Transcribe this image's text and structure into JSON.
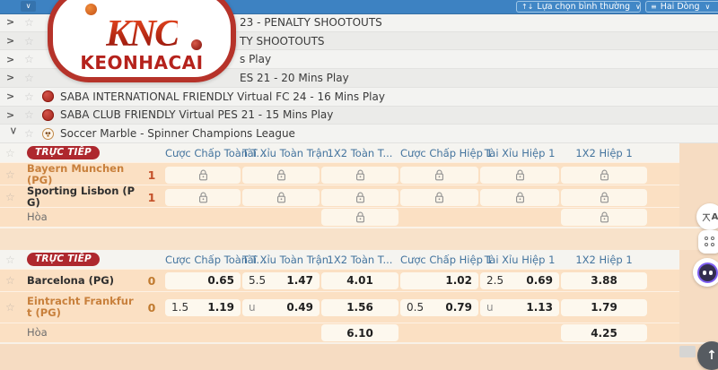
{
  "topbar": {
    "collapse_all": {
      "icon": "chevron-down-icon"
    },
    "view_mode_button": {
      "icon": "sort-arrows-icon",
      "label": "Lựa chọn bình thường",
      "chevron": "chevron-down-icon"
    },
    "layout_button": {
      "icon": "rows-list-icon",
      "label": "Hai Dòng",
      "chevron": "chevron-down-icon"
    }
  },
  "logo": {
    "monogram": "KNC",
    "wordmark": "KEONHACAI"
  },
  "league_list": [
    {
      "state": "collapsed",
      "icon": null,
      "label": "23 - PENALTY SHOOTOUTS",
      "covered_by_logo": true
    },
    {
      "state": "collapsed",
      "icon": null,
      "label": "TY SHOOTOUTS",
      "covered_by_logo": true
    },
    {
      "state": "collapsed",
      "icon": null,
      "label": "s Play",
      "covered_by_logo": true
    },
    {
      "state": "collapsed",
      "icon": null,
      "label": "ES 21 - 20 Mins Play",
      "covered_by_logo": true
    },
    {
      "state": "collapsed",
      "icon": "saba-ball-icon",
      "label": "SABA INTERNATIONAL FRIENDLY Virtual FC 24 - 16 Mins Play",
      "covered_by_logo": false
    },
    {
      "state": "collapsed",
      "icon": "saba-ball-icon",
      "label": "SABA CLUB FRIENDLY Virtual PES 21 - 15 Mins Play",
      "covered_by_logo": false
    },
    {
      "state": "expanded",
      "icon": "marble-ball-icon",
      "label": "Soccer Marble - Spinner Champions League",
      "covered_by_logo": false
    }
  ],
  "odds_tables": [
    {
      "live_badge": "TRỰC TIẾP",
      "columns": [
        "Cược Chấp Toàn T...",
        "Tài Xỉu Toàn Trận",
        "1X2 Toàn T...",
        "Cược Chấp Hiệp 1",
        "Tài Xỉu Hiệp 1",
        "1X2 Hiệp 1"
      ],
      "score_color": "#c4512a",
      "rows": [
        {
          "name": "Bayern Munchen (PG)",
          "name_style": "orange",
          "score": "1",
          "cells": [
            {
              "lock": true
            },
            {
              "lock": true
            },
            {
              "lock": true
            },
            {
              "lock": true
            },
            {
              "lock": true
            },
            {
              "lock": true
            }
          ]
        },
        {
          "name": "Sporting Lisbon (PG)",
          "name_style": "dark",
          "score": "1",
          "cells": [
            {
              "lock": true
            },
            {
              "lock": true
            },
            {
              "lock": true
            },
            {
              "lock": true
            },
            {
              "lock": true
            },
            {
              "lock": true
            }
          ]
        },
        {
          "name": "Hòa",
          "name_style": "muted",
          "score": "",
          "cells": [
            null,
            null,
            {
              "lock": true
            },
            null,
            null,
            {
              "lock": true
            }
          ]
        }
      ]
    },
    {
      "live_badge": "TRỰC TIẾP",
      "columns": [
        "Cược Chấp Toàn T...",
        "Tài Xỉu Toàn Trận",
        "1X2 Toàn T...",
        "Cược Chấp Hiệp 1",
        "Tài Xỉu Hiệp 1",
        "1X2 Hiệp 1"
      ],
      "score_color": "#c07a2f",
      "rows": [
        {
          "name": "Barcelona (PG)",
          "name_style": "dark",
          "score": "0",
          "cells": [
            {
              "right": "0.65"
            },
            {
              "left": "5.5",
              "right": "1.47"
            },
            {
              "center": "4.01"
            },
            {
              "right": "1.02"
            },
            {
              "left": "2.5",
              "right": "0.69"
            },
            {
              "center": "3.88"
            }
          ]
        },
        {
          "name": "Eintracht Frankfurt (PG)",
          "name_style": "orange",
          "score": "0",
          "tall": true,
          "cells": [
            {
              "left": "1.5",
              "right": "1.19"
            },
            {
              "left": "u",
              "right": "0.49"
            },
            {
              "center": "1.56"
            },
            {
              "left": "0.5",
              "right": "0.79"
            },
            {
              "left": "u",
              "right": "1.13"
            },
            {
              "center": "1.79"
            }
          ]
        },
        {
          "name": "Hòa",
          "name_style": "muted",
          "score": "",
          "cells": [
            null,
            null,
            {
              "center": "6.10"
            },
            null,
            null,
            {
              "center": "4.25"
            }
          ]
        }
      ]
    }
  ],
  "floating_buttons": [
    {
      "icon": "translate-icon",
      "label": "文A"
    },
    {
      "icon": "apps-grid-icon"
    },
    {
      "icon": "chatbot-icon"
    },
    {
      "icon": "back-to-top-icon",
      "label": "↑"
    }
  ],
  "colors": {
    "topbar_blue": "#3d82c2",
    "live_badge_red": "#ae282e",
    "header_text_blue": "#44749e",
    "row_peach": "#fbe0c3",
    "cell_cream": "#fdf8ee",
    "team_orange": "#c8803c",
    "team_dark": "#2e2e2e",
    "draw_gray": "#6e6e6e"
  }
}
